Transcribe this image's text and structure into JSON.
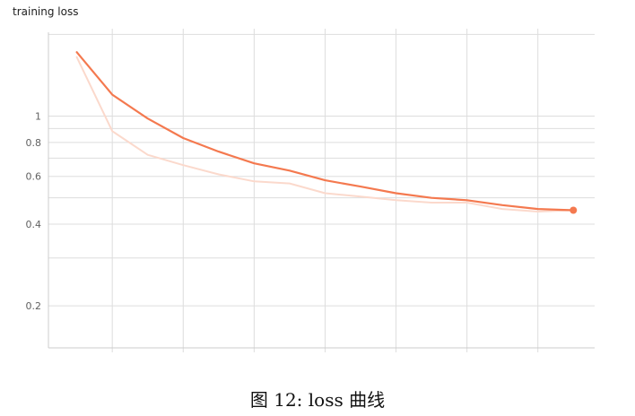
{
  "chart_data": {
    "type": "line",
    "title": "training loss",
    "xlabel": "",
    "ylabel": "",
    "yscale": "log",
    "ylim": [
      0.14,
      2.1
    ],
    "xlim": [
      -0.8,
      14.6
    ],
    "grid": true,
    "y_ticks": [
      0.2,
      0.4,
      0.6,
      0.8,
      1
    ],
    "y_tick_labels": [
      "0.2",
      "0.4",
      "0.6",
      "0.8",
      "1"
    ],
    "series": [
      {
        "style": "smoothed",
        "color": "#f4794f",
        "x": [
          0,
          1,
          2,
          3,
          4,
          5,
          6,
          7,
          8,
          9,
          10,
          11,
          12,
          13,
          14
        ],
        "values": [
          1.72,
          1.2,
          0.98,
          0.83,
          0.74,
          0.67,
          0.63,
          0.58,
          0.55,
          0.52,
          0.5,
          0.49,
          0.47,
          0.455,
          0.45
        ]
      },
      {
        "style": "raw",
        "color": "#fbd9cc",
        "x": [
          0,
          1,
          2,
          3,
          4,
          5,
          6,
          7,
          8,
          9,
          10,
          11,
          12,
          13,
          14
        ],
        "values": [
          1.65,
          0.88,
          0.72,
          0.66,
          0.61,
          0.575,
          0.565,
          0.52,
          0.505,
          0.49,
          0.48,
          0.48,
          0.455,
          0.445,
          0.45
        ]
      }
    ]
  },
  "figure": {
    "caption": "图 12: loss 曲线"
  }
}
